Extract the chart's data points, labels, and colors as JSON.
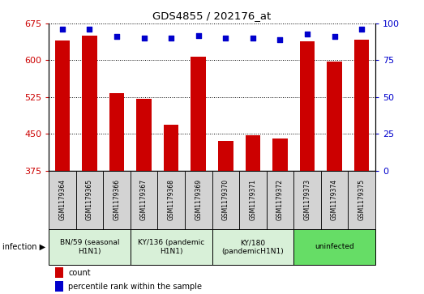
{
  "title": "GDS4855 / 202176_at",
  "samples": [
    "GSM1179364",
    "GSM1179365",
    "GSM1179366",
    "GSM1179367",
    "GSM1179368",
    "GSM1179369",
    "GSM1179370",
    "GSM1179371",
    "GSM1179372",
    "GSM1179373",
    "GSM1179374",
    "GSM1179375"
  ],
  "counts": [
    640,
    650,
    533,
    522,
    468,
    608,
    435,
    447,
    440,
    638,
    597,
    642
  ],
  "percentiles": [
    96,
    96,
    91,
    90,
    90,
    92,
    90,
    90,
    89,
    93,
    91,
    96
  ],
  "ylim_left": [
    375,
    675
  ],
  "ylim_right": [
    0,
    100
  ],
  "yticks_left": [
    375,
    450,
    525,
    600,
    675
  ],
  "yticks_right": [
    0,
    25,
    50,
    75,
    100
  ],
  "groups": [
    {
      "label": "BN/59 (seasonal\nH1N1)",
      "start": 0,
      "end": 3,
      "color": "#d8f0d8"
    },
    {
      "label": "KY/136 (pandemic\nH1N1)",
      "start": 3,
      "end": 6,
      "color": "#d8f0d8"
    },
    {
      "label": "KY/180\n(pandemicH1N1)",
      "start": 6,
      "end": 9,
      "color": "#d8f0d8"
    },
    {
      "label": "uninfected",
      "start": 9,
      "end": 12,
      "color": "#66dd66"
    }
  ],
  "bar_color": "#cc0000",
  "dot_color": "#0000cc",
  "sample_box_color": "#d3d3d3",
  "infection_label": "infection",
  "legend_count_label": "count",
  "legend_percentile_label": "percentile rank within the sample"
}
